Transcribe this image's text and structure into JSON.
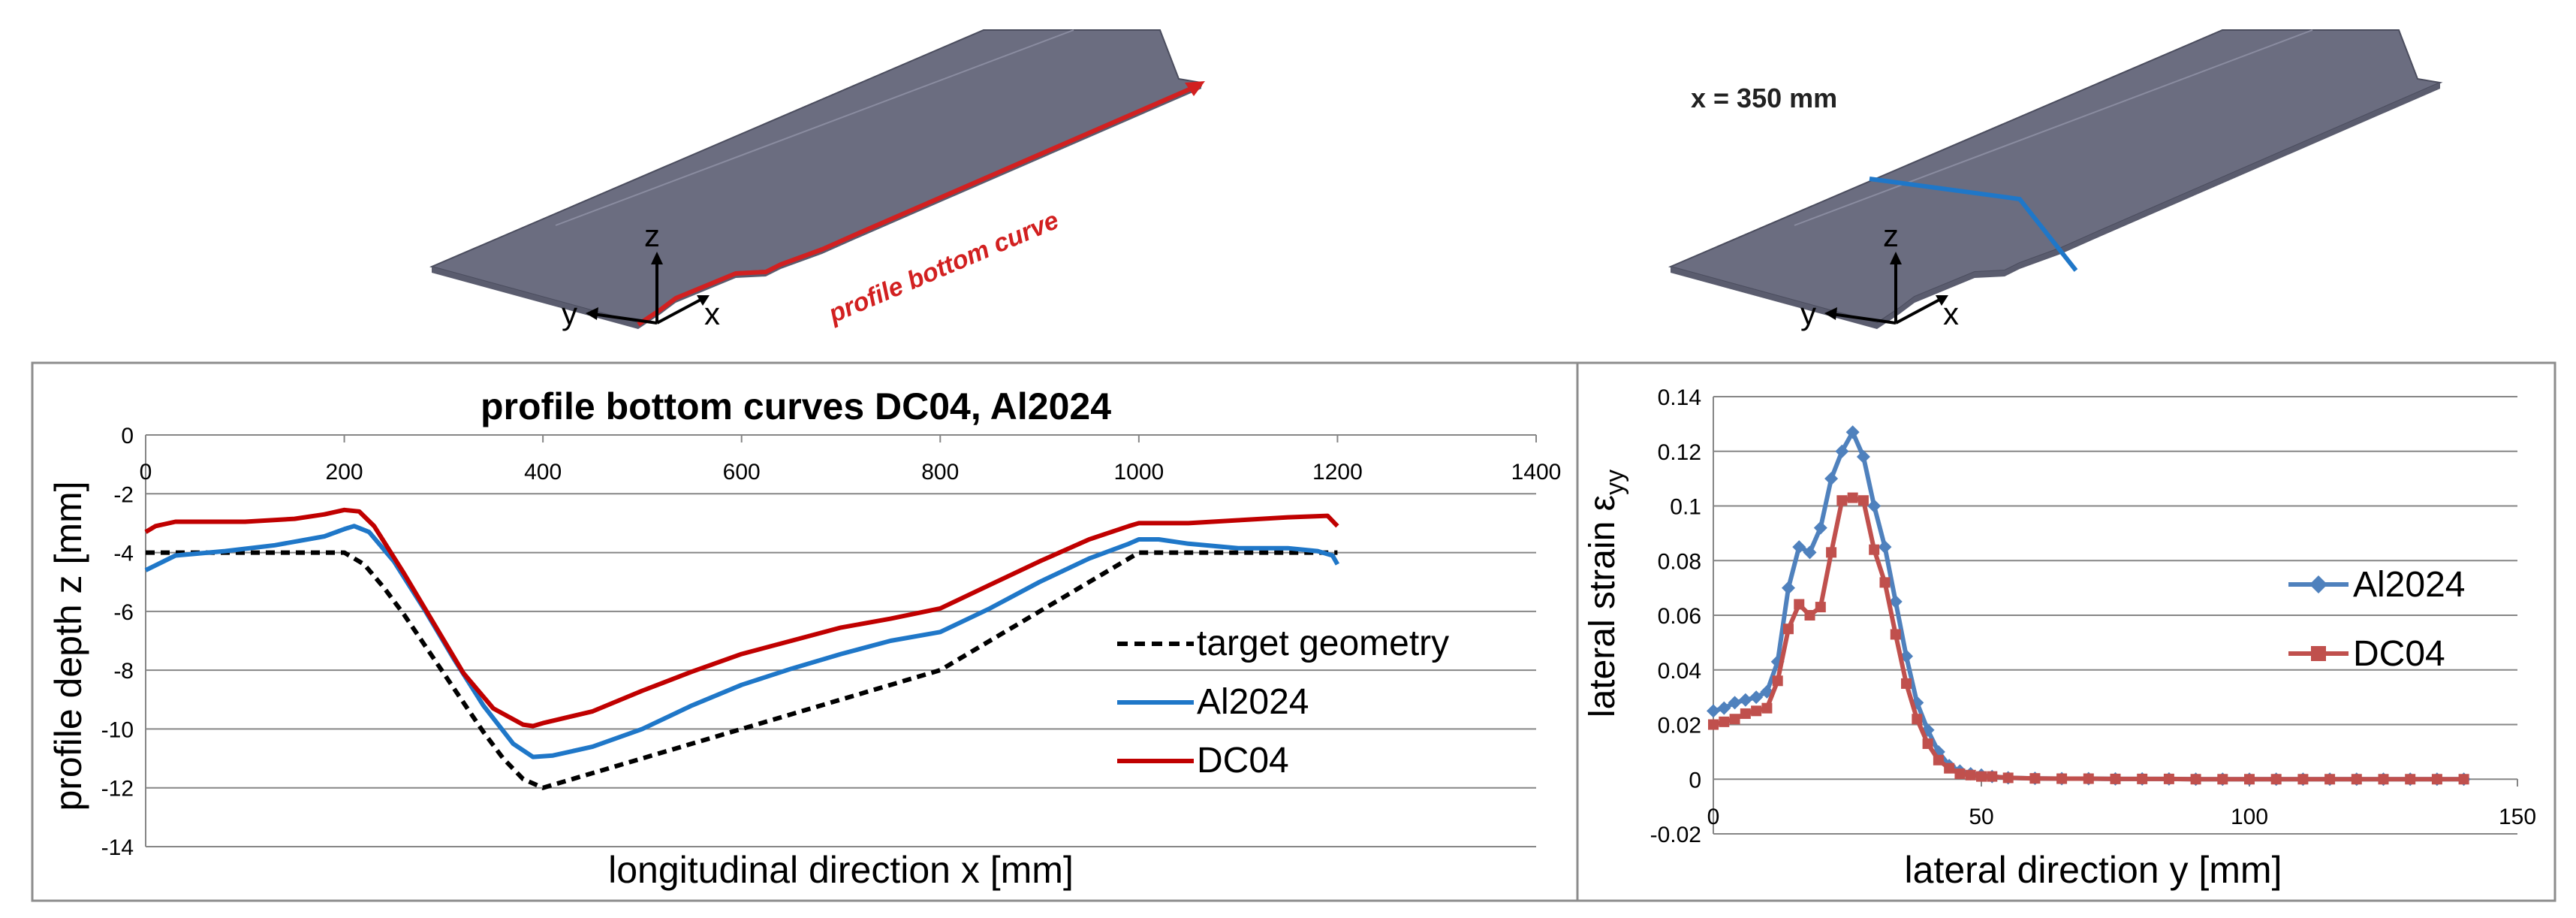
{
  "illustrations": [
    {
      "name": "left",
      "annotation": "profile bottom curve",
      "axis_labels": {
        "z": "z",
        "y": "y",
        "x": "x"
      }
    },
    {
      "name": "right",
      "annotation": "x = 350 mm",
      "axis_labels": {
        "z": "z",
        "y": "y",
        "x": "x"
      }
    }
  ],
  "colors": {
    "red": "#c00000",
    "blue": "#1f77c8",
    "al_marker_blue": "#4f81bd",
    "dc_marker_red": "#c0504d",
    "black": "#000000",
    "grid": "#868686",
    "part_fill": "#6b6d80",
    "frame": "#8c8c8c"
  },
  "chart_data": [
    {
      "type": "line",
      "title": "profile bottom curves DC04, Al2024",
      "xlabel": "longitudinal direction x [mm]",
      "ylabel": "profile depth z [mm]",
      "xlim": [
        0,
        1400
      ],
      "ylim": [
        -14,
        0
      ],
      "xticks": [
        "0",
        "200",
        "400",
        "600",
        "800",
        "1000",
        "1200",
        "1400"
      ],
      "yticks": [
        "0",
        "-2",
        "-4",
        "-6",
        "-8",
        "-10",
        "-12",
        "-14"
      ],
      "grid": true,
      "legend_position": "right",
      "series": [
        {
          "name": "target geometry",
          "style": "dashed",
          "color": "#000000",
          "x": [
            0,
            200,
            220,
            240,
            260,
            280,
            300,
            320,
            340,
            360,
            380,
            400,
            800,
            1000,
            1200
          ],
          "y": [
            -4,
            -4,
            -4.4,
            -5.2,
            -6.1,
            -7.1,
            -8.1,
            -9.1,
            -10.1,
            -11.0,
            -11.7,
            -12,
            -8,
            -4,
            -4
          ]
        },
        {
          "name": "Al2024",
          "style": "solid",
          "color": "#1f77c8",
          "x": [
            0,
            30,
            80,
            130,
            180,
            200,
            210,
            225,
            250,
            280,
            310,
            340,
            370,
            390,
            410,
            450,
            500,
            550,
            600,
            650,
            700,
            750,
            800,
            850,
            900,
            950,
            990,
            1000,
            1020,
            1050,
            1100,
            1150,
            1180,
            1195,
            1200
          ],
          "y": [
            -4.6,
            -4.1,
            -3.95,
            -3.75,
            -3.45,
            -3.2,
            -3.1,
            -3.3,
            -4.3,
            -5.9,
            -7.6,
            -9.2,
            -10.5,
            -10.95,
            -10.9,
            -10.6,
            -10.0,
            -9.2,
            -8.5,
            -7.95,
            -7.45,
            -7.0,
            -6.7,
            -5.9,
            -5.0,
            -4.2,
            -3.7,
            -3.55,
            -3.55,
            -3.7,
            -3.85,
            -3.85,
            -3.95,
            -4.1,
            -4.4
          ]
        },
        {
          "name": "DC04",
          "style": "solid",
          "color": "#c00000",
          "x": [
            0,
            10,
            30,
            100,
            150,
            180,
            200,
            215,
            230,
            260,
            290,
            320,
            350,
            380,
            390,
            400,
            450,
            500,
            550,
            600,
            650,
            700,
            750,
            800,
            850,
            900,
            950,
            990,
            1000,
            1050,
            1100,
            1150,
            1190,
            1200
          ],
          "y": [
            -3.3,
            -3.1,
            -2.95,
            -2.95,
            -2.85,
            -2.7,
            -2.55,
            -2.6,
            -3.1,
            -4.7,
            -6.4,
            -8.1,
            -9.3,
            -9.85,
            -9.9,
            -9.8,
            -9.4,
            -8.7,
            -8.05,
            -7.45,
            -7.0,
            -6.55,
            -6.25,
            -5.9,
            -5.1,
            -4.3,
            -3.55,
            -3.1,
            -3.0,
            -3.0,
            -2.9,
            -2.8,
            -2.75,
            -3.1
          ]
        }
      ]
    },
    {
      "type": "line",
      "title": "",
      "xlabel": "lateral direction y [mm]",
      "ylabel": "lateral strain ε_yy",
      "ylabel_main": "lateral strain ε",
      "ylabel_sub": "yy",
      "xlim": [
        0,
        150
      ],
      "ylim": [
        -0.02,
        0.14
      ],
      "xticks": [
        "0",
        "50",
        "100",
        "150"
      ],
      "yticks": [
        "0.14",
        "0.12",
        "0.1",
        "0.08",
        "0.06",
        "0.04",
        "0.02",
        "0",
        "-0.02"
      ],
      "grid": true,
      "legend_position": "right",
      "series": [
        {
          "name": "Al2024",
          "marker": "diamond",
          "color": "#4f81bd",
          "x": [
            0,
            2,
            4,
            6,
            8,
            10,
            12,
            14,
            16,
            18,
            20,
            22,
            24,
            26,
            28,
            30,
            32,
            34,
            36,
            38,
            40,
            42,
            44,
            46,
            48,
            50,
            52,
            55,
            60,
            65,
            70,
            75,
            80,
            85,
            90,
            95,
            100,
            105,
            110,
            115,
            120,
            125,
            130,
            135,
            140
          ],
          "y": [
            0.025,
            0.026,
            0.028,
            0.029,
            0.03,
            0.032,
            0.043,
            0.07,
            0.085,
            0.083,
            0.092,
            0.11,
            0.12,
            0.127,
            0.118,
            0.1,
            0.085,
            0.065,
            0.045,
            0.028,
            0.018,
            0.01,
            0.005,
            0.003,
            0.002,
            0.0015,
            0.001,
            0.0005,
            0.0003,
            0.0002,
            0.0002,
            0.0001,
            0.0001,
            0.0001,
            0,
            0,
            0,
            0,
            0,
            0,
            0,
            0,
            0,
            0,
            0
          ]
        },
        {
          "name": "DC04",
          "marker": "square",
          "color": "#c0504d",
          "x": [
            0,
            2,
            4,
            6,
            8,
            10,
            12,
            14,
            16,
            18,
            20,
            22,
            24,
            26,
            28,
            30,
            32,
            34,
            36,
            38,
            40,
            42,
            44,
            46,
            48,
            50,
            52,
            55,
            60,
            65,
            70,
            75,
            80,
            85,
            90,
            95,
            100,
            105,
            110,
            115,
            120,
            125,
            130,
            135,
            140
          ],
          "y": [
            0.02,
            0.021,
            0.022,
            0.024,
            0.025,
            0.026,
            0.036,
            0.055,
            0.064,
            0.06,
            0.063,
            0.083,
            0.102,
            0.103,
            0.102,
            0.084,
            0.072,
            0.053,
            0.035,
            0.022,
            0.013,
            0.007,
            0.004,
            0.002,
            0.0015,
            0.001,
            0.001,
            0.0005,
            0.0003,
            0.0002,
            0.0002,
            0.0001,
            0.0001,
            0.0001,
            0,
            0,
            0,
            0,
            0,
            0,
            0,
            0,
            0,
            0,
            0
          ]
        }
      ]
    }
  ]
}
